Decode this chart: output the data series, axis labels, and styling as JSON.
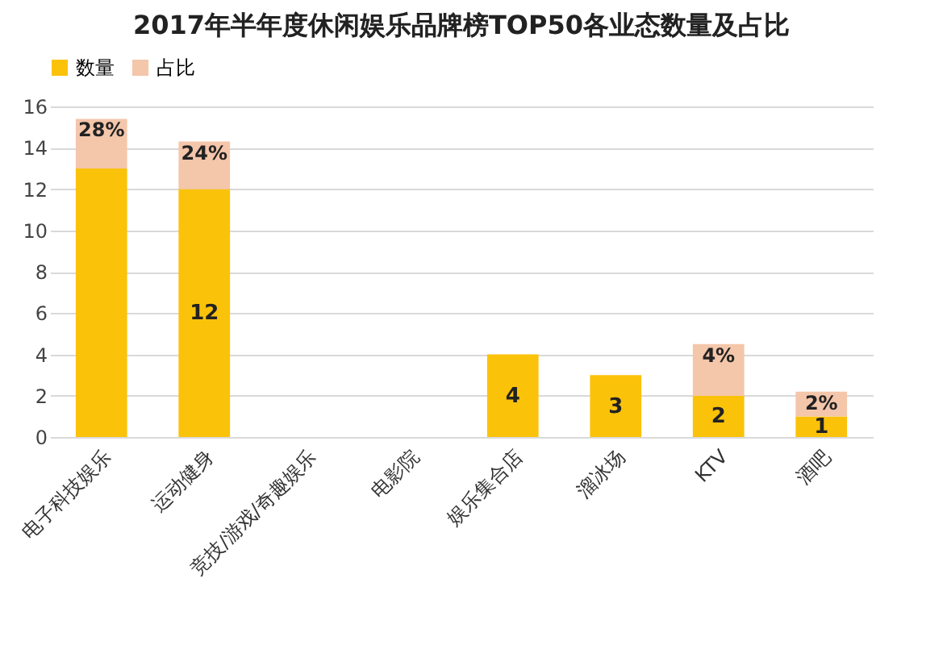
{
  "chart_data": {
    "type": "bar",
    "title": "2017年半年度休闲娱乐品牌榜TOP50各业态数量及占比",
    "categories": [
      "电子科技娱乐",
      "运动健身",
      "竞技/游戏/奇趣娱乐",
      "电影院",
      "娱乐集合店",
      "溜冰场",
      "KTV",
      "酒吧"
    ],
    "series": [
      {
        "name": "数量",
        "color": "#fbc20a",
        "values": [
          13,
          12,
          null,
          null,
          4,
          3,
          2,
          1
        ],
        "value_labels": [
          null,
          "12",
          null,
          null,
          "4",
          "3",
          "2",
          "1"
        ]
      },
      {
        "name": "占比",
        "color": "#f4c6aa",
        "values": [
          2.4,
          2.3,
          null,
          null,
          null,
          null,
          2.5,
          1.2
        ]
      }
    ],
    "annotations": [
      {
        "text": "28%",
        "x": "电子科技娱乐",
        "y": 15.4
      },
      {
        "text": "24%",
        "x": "运动健身",
        "y": 14.3
      },
      {
        "text": "4%",
        "x": "KTV",
        "y": 4.5
      },
      {
        "text": "2%",
        "x": "酒吧",
        "y": 2.2
      }
    ],
    "stacked": true,
    "ylim": [
      0,
      16
    ],
    "yticks": [
      0,
      2,
      4,
      6,
      8,
      10,
      12,
      14,
      16
    ],
    "grid": "y",
    "legend": "top"
  }
}
